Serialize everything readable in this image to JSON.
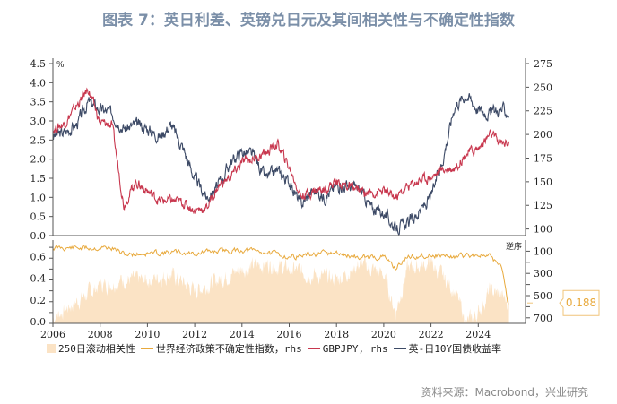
{
  "title": "图表 7：英日利差、英镑兑日元及其间相关性与不确定性指数",
  "source": "资料来源：Macrobond，兴业研究",
  "chart_data": [
    {
      "type": "line",
      "unit_label": "%",
      "x_ticks": [
        "2006",
        "2008",
        "2010",
        "2012",
        "2014",
        "2016",
        "2018",
        "2020",
        "2022",
        "2024"
      ],
      "xlim": [
        2006,
        2026
      ],
      "y_left": {
        "ticks": [
          "0.0",
          "0.5",
          "1.0",
          "1.5",
          "2.0",
          "2.5",
          "3.0",
          "3.5",
          "4.0",
          "4.5"
        ],
        "range": [
          0,
          4.5
        ]
      },
      "y_right": {
        "ticks": [
          "100",
          "125",
          "150",
          "175",
          "200",
          "225",
          "250",
          "275"
        ],
        "range": [
          93,
          275
        ]
      },
      "series": [
        {
          "name": "英-日10Y国债收益率",
          "axis": "left",
          "color": "#3d4a66",
          "x": [
            2006,
            2006.5,
            2007,
            2007.5,
            2008,
            2008.5,
            2009,
            2009.5,
            2010,
            2010.5,
            2011,
            2011.5,
            2012,
            2012.5,
            2013,
            2013.5,
            2014,
            2014.5,
            2015,
            2015.5,
            2016,
            2016.5,
            2017,
            2017.5,
            2018,
            2018.5,
            2019,
            2019.5,
            2020,
            2020.5,
            2021,
            2021.5,
            2022,
            2022.5,
            2023,
            2023.5,
            2024,
            2024.5,
            2025,
            2025.3
          ],
          "y": [
            2.6,
            2.7,
            2.9,
            3.5,
            3.3,
            3.2,
            2.8,
            2.9,
            2.8,
            2.6,
            2.9,
            2.3,
            1.5,
            1.0,
            1.3,
            1.9,
            2.2,
            2.1,
            1.5,
            1.7,
            1.4,
            0.8,
            1.2,
            1.0,
            1.3,
            1.3,
            1.2,
            0.7,
            0.6,
            0.2,
            0.3,
            0.6,
            1.0,
            2.0,
            3.4,
            3.7,
            3.3,
            3.2,
            3.3,
            3.2
          ]
        },
        {
          "name": "GBPJPY, rhs",
          "axis": "right",
          "color": "#c8374e",
          "x": [
            2006,
            2006.5,
            2007,
            2007.5,
            2008,
            2008.5,
            2009,
            2009.5,
            2010,
            2010.5,
            2011,
            2011.5,
            2012,
            2012.5,
            2013,
            2013.5,
            2014,
            2014.5,
            2015,
            2015.5,
            2016,
            2016.5,
            2017,
            2017.5,
            2018,
            2018.5,
            2019,
            2019.5,
            2020,
            2020.5,
            2021,
            2021.5,
            2022,
            2022.5,
            2023,
            2023.5,
            2024,
            2024.5,
            2025,
            2025.3
          ],
          "y": [
            205,
            212,
            230,
            248,
            212,
            210,
            125,
            150,
            140,
            130,
            130,
            128,
            120,
            122,
            145,
            155,
            170,
            175,
            180,
            190,
            165,
            135,
            140,
            143,
            150,
            145,
            140,
            138,
            140,
            133,
            145,
            152,
            155,
            163,
            165,
            180,
            185,
            200,
            190,
            193
          ]
        }
      ]
    },
    {
      "type": "area",
      "x_ticks": [
        "2006",
        "2008",
        "2010",
        "2012",
        "2014",
        "2016",
        "2018",
        "2020",
        "2022",
        "2024"
      ],
      "xlim": [
        2006,
        2026
      ],
      "y_left": {
        "ticks": [
          "0.0",
          "0.2",
          "0.4",
          "0.6"
        ],
        "range": [
          0,
          0.8
        ]
      },
      "y_right": {
        "ticks": [
          "100",
          "300",
          "500",
          "700"
        ],
        "range": [
          0,
          750
        ],
        "reversed": true,
        "label": "逆序"
      },
      "series": [
        {
          "name": "250日滚动相关性",
          "axis": "left",
          "color": "#fbe3c5",
          "x": [
            2006,
            2007,
            2008,
            2009,
            2010,
            2011,
            2012,
            2013,
            2014,
            2015,
            2016,
            2017,
            2018,
            2019,
            2020,
            2020.5,
            2021,
            2022,
            2023,
            2023.5,
            2024,
            2024.5,
            2025,
            2025.3
          ],
          "y": [
            0.05,
            0.2,
            0.35,
            0.4,
            0.4,
            0.45,
            0.3,
            0.4,
            0.5,
            0.55,
            0.5,
            0.45,
            0.4,
            0.55,
            0.45,
            0.1,
            0.5,
            0.55,
            0.3,
            0.0,
            0.1,
            0.3,
            0.25,
            0.188
          ]
        },
        {
          "name": "世界经济政策不确定性指数，rhs",
          "axis": "right",
          "color": "#e8a93c",
          "x": [
            2006,
            2007,
            2008,
            2008.5,
            2009,
            2010,
            2011,
            2012,
            2013,
            2014,
            2015,
            2016,
            2017,
            2018,
            2019,
            2020,
            2020.5,
            2021,
            2022,
            2023,
            2024,
            2024.5,
            2025,
            2025.3
          ],
          "y": [
            70,
            70,
            70,
            70,
            130,
            120,
            110,
            120,
            100,
            90,
            110,
            150,
            130,
            120,
            160,
            150,
            250,
            150,
            130,
            150,
            130,
            150,
            250,
            600
          ]
        }
      ],
      "annotation": "0.188"
    }
  ]
}
